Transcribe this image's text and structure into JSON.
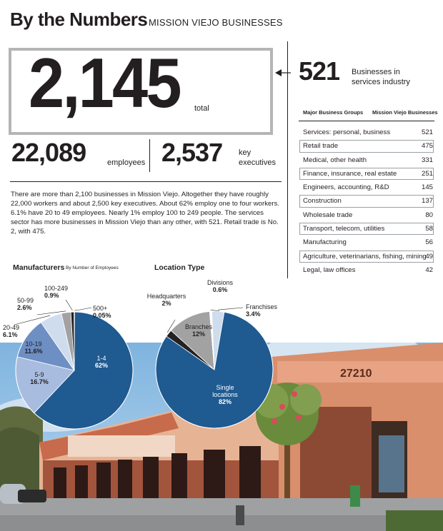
{
  "header": {
    "title": "By the Numbers",
    "subtitle": "MISSION VIEJO BUSINESSES"
  },
  "stats": {
    "total": {
      "value": "2,145",
      "label": "total"
    },
    "employees": {
      "value": "22,089",
      "label": "employees"
    },
    "executives": {
      "value": "2,537",
      "label_line1": "key",
      "label_line2": "executives"
    },
    "services": {
      "value": "521",
      "label_line1": "Businesses in",
      "label_line2": "services industry"
    }
  },
  "paragraph": "There are more than 2,100 businesses in Mission Viejo. Altogether they have roughly 22,000 workers and about 2,500 key executives. About 62% employ one to four workers. 6.1% have 20 to 49 employees. Nearly 1% employ 100 to 249 people. The services sector has more businesses in Mission Viejo than any other, with 521. Retail trade is No. 2, with 475.",
  "colors": {
    "dark_blue": "#1f5a91",
    "mid_blue": "#6d8fc4",
    "light_blue": "#a8bcdf",
    "pale_blue": "#cfdcee",
    "gray": "#a2a2a2",
    "dark": "#222222",
    "border_gray": "#b5b5b5"
  },
  "chart_data": [
    {
      "type": "table",
      "columns": [
        "Major Business Groups",
        "Mission Viejo Businesses"
      ],
      "rows": [
        {
          "label": "Services: personal, business",
          "value": "521",
          "boxed": false
        },
        {
          "label": "Retail trade",
          "value": "475",
          "boxed": true
        },
        {
          "label": "Medical, other health",
          "value": "331",
          "boxed": false
        },
        {
          "label": "Finance, insurance, real estate",
          "value": "251",
          "boxed": true
        },
        {
          "label": "Engineers, accounting, R&D",
          "value": "145",
          "boxed": false
        },
        {
          "label": "Construction",
          "value": "137",
          "boxed": true
        },
        {
          "label": "Wholesale trade",
          "value": "80",
          "boxed": false
        },
        {
          "label": "Transport, telecom, utilities",
          "value": "58",
          "boxed": true
        },
        {
          "label": "Manufacturing",
          "value": "56",
          "boxed": false
        },
        {
          "label": "Agriculture, veterinarians, fishing, mining",
          "value": "49",
          "boxed": true
        },
        {
          "label": "Legal, law offices",
          "value": "42",
          "boxed": false
        }
      ]
    },
    {
      "type": "pie",
      "title": "Manufacturers",
      "subtitle": "By Number of Employees",
      "slices": [
        {
          "name": "1-4",
          "value": 62,
          "label": "62%",
          "color": "#1f5a91",
          "text_color": "#ffffff"
        },
        {
          "name": "5-9",
          "value": 16.7,
          "label": "16.7%",
          "color": "#a8bcdf",
          "text_color": "#231f20"
        },
        {
          "name": "10-19",
          "value": 11.6,
          "label": "11.6%",
          "color": "#6d8fc4",
          "text_color": "#231f20"
        },
        {
          "name": "20-49",
          "value": 6.1,
          "label": "6.1%",
          "color": "#cfdcee",
          "text_color": "#231f20"
        },
        {
          "name": "50-99",
          "value": 2.6,
          "label": "2.6%",
          "color": "#a2a2a2",
          "text_color": "#231f20"
        },
        {
          "name": "100-249",
          "value": 0.9,
          "label": "0.9%",
          "color": "#222222",
          "text_color": "#231f20"
        },
        {
          "name": "500+",
          "value": 0.05,
          "label": "0.05%",
          "color": "#ffffff",
          "text_color": "#231f20"
        }
      ]
    },
    {
      "type": "pie",
      "title": "Location Type",
      "slices": [
        {
          "name": "Single locations",
          "value": 82,
          "label": "82%",
          "color": "#1f5a91",
          "text_color": "#ffffff"
        },
        {
          "name": "Headquarters",
          "value": 2,
          "label": "2%",
          "color": "#222222",
          "text_color": "#231f20"
        },
        {
          "name": "Branches",
          "value": 12,
          "label": "12%",
          "color": "#a2a2a2",
          "text_color": "#231f20"
        },
        {
          "name": "Divisions",
          "value": 0.6,
          "label": "0.6%",
          "color": "#ffffff",
          "text_color": "#231f20"
        },
        {
          "name": "Franchises",
          "value": 3.4,
          "label": "3.4%",
          "color": "#cfdcee",
          "text_color": "#231f20"
        }
      ]
    }
  ],
  "photo": {
    "address_sign": "27210"
  }
}
